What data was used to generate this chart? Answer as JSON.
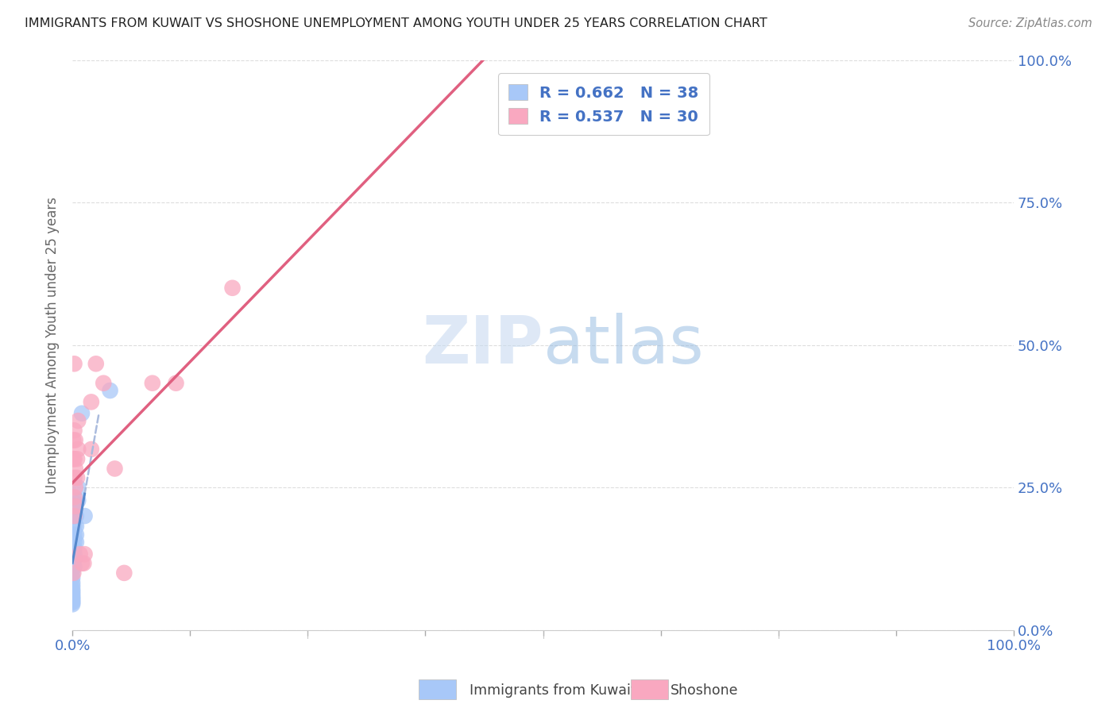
{
  "title": "IMMIGRANTS FROM KUWAIT VS SHOSHONE UNEMPLOYMENT AMONG YOUTH UNDER 25 YEARS CORRELATION CHART",
  "source": "Source: ZipAtlas.com",
  "ylabel": "Unemployment Among Youth under 25 years",
  "watermark": "ZIPatlas",
  "kuwait_color": "#a8c8f8",
  "shoshone_color": "#f9a8c0",
  "kuwait_line_color": "#5588cc",
  "kuwait_line_dash_color": "#aabbdd",
  "shoshone_line_color": "#e06080",
  "kuwait_scatter": [
    [
      0.0,
      0.2
    ],
    [
      0.0,
      0.167
    ],
    [
      0.0,
      0.15
    ],
    [
      0.0,
      0.143
    ],
    [
      0.0,
      0.133
    ],
    [
      0.0,
      0.125
    ],
    [
      0.0,
      0.111
    ],
    [
      0.0,
      0.1
    ],
    [
      0.0,
      0.091
    ],
    [
      0.0,
      0.083
    ],
    [
      0.0,
      0.077
    ],
    [
      0.0,
      0.071
    ],
    [
      0.0,
      0.067
    ],
    [
      0.0,
      0.063
    ],
    [
      0.0,
      0.059
    ],
    [
      0.0,
      0.056
    ],
    [
      0.0,
      0.053
    ],
    [
      0.0,
      0.05
    ],
    [
      0.0,
      0.048
    ],
    [
      0.0,
      0.045
    ],
    [
      0.002,
      0.2
    ],
    [
      0.002,
      0.182
    ],
    [
      0.002,
      0.167
    ],
    [
      0.002,
      0.154
    ],
    [
      0.002,
      0.143
    ],
    [
      0.002,
      0.133
    ],
    [
      0.002,
      0.125
    ],
    [
      0.002,
      0.111
    ],
    [
      0.004,
      0.222
    ],
    [
      0.004,
      0.2
    ],
    [
      0.004,
      0.182
    ],
    [
      0.004,
      0.167
    ],
    [
      0.004,
      0.154
    ],
    [
      0.006,
      0.25
    ],
    [
      0.006,
      0.227
    ],
    [
      0.01,
      0.38
    ],
    [
      0.013,
      0.2
    ],
    [
      0.04,
      0.42
    ]
  ],
  "shoshone_scatter": [
    [
      0.001,
      0.333
    ],
    [
      0.001,
      0.3
    ],
    [
      0.001,
      0.1
    ],
    [
      0.002,
      0.467
    ],
    [
      0.002,
      0.35
    ],
    [
      0.002,
      0.3
    ],
    [
      0.002,
      0.267
    ],
    [
      0.002,
      0.233
    ],
    [
      0.002,
      0.2
    ],
    [
      0.003,
      0.333
    ],
    [
      0.003,
      0.283
    ],
    [
      0.003,
      0.25
    ],
    [
      0.003,
      0.217
    ],
    [
      0.005,
      0.3
    ],
    [
      0.005,
      0.267
    ],
    [
      0.006,
      0.367
    ],
    [
      0.006,
      0.317
    ],
    [
      0.008,
      0.133
    ],
    [
      0.01,
      0.117
    ],
    [
      0.012,
      0.117
    ],
    [
      0.013,
      0.133
    ],
    [
      0.02,
      0.4
    ],
    [
      0.02,
      0.317
    ],
    [
      0.025,
      0.467
    ],
    [
      0.033,
      0.433
    ],
    [
      0.045,
      0.283
    ],
    [
      0.055,
      0.1
    ],
    [
      0.085,
      0.433
    ],
    [
      0.11,
      0.433
    ],
    [
      0.17,
      0.6
    ]
  ],
  "xlim": [
    0,
    1.0
  ],
  "ylim": [
    0,
    1.0
  ],
  "xticks": [
    0.0,
    0.125,
    0.25,
    0.375,
    0.5,
    0.625,
    0.75,
    0.875,
    1.0
  ],
  "yticks": [
    0.0,
    0.25,
    0.5,
    0.75,
    1.0
  ],
  "xtick_labels_show": [
    0.0,
    0.5,
    1.0
  ],
  "ytick_right_labels": [
    "0.0%",
    "25.0%",
    "50.0%",
    "75.0%",
    "100.0%"
  ],
  "background_color": "#ffffff",
  "grid_color": "#dddddd",
  "tick_color": "#4472c4",
  "title_color": "#222222",
  "source_color": "#888888",
  "ylabel_color": "#666666"
}
